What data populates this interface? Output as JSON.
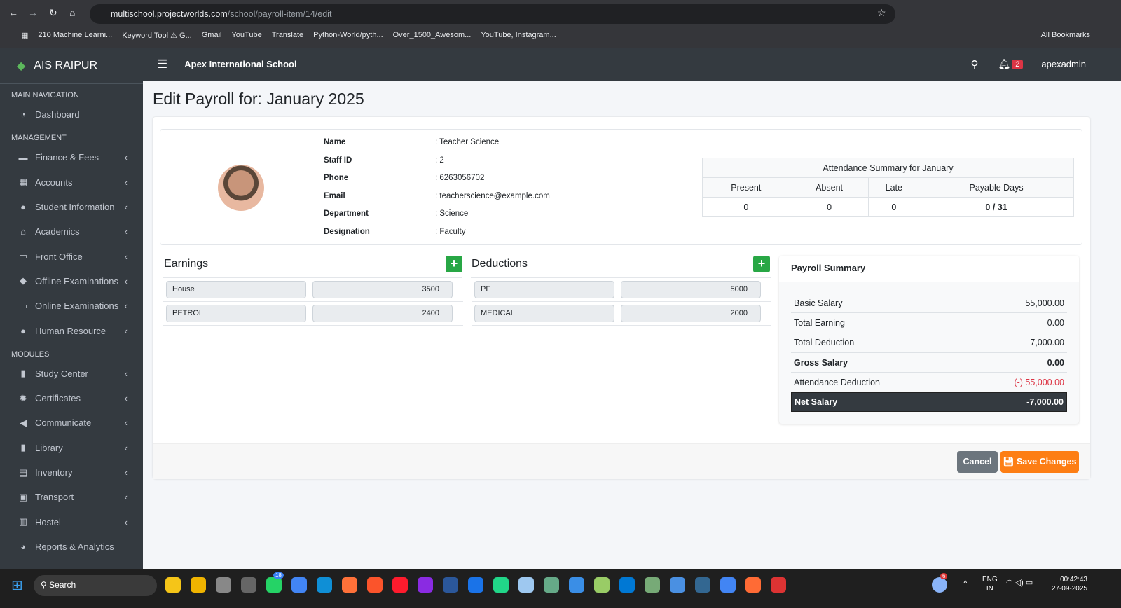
{
  "browser": {
    "url_host": "multischool.projectworlds.com",
    "url_path": "/school/payroll-item/14/edit",
    "bookmarks": [
      "210 Machine Learni...",
      "Keyword Tool ⚠ G...",
      "Gmail",
      "YouTube",
      "Translate",
      "Python-World/pyth...",
      "Over_1500_Awesom...",
      "YouTube, Instagram..."
    ],
    "all_bookmarks": "All Bookmarks"
  },
  "sidebar": {
    "brand": "AIS RAIPUR",
    "sections": [
      {
        "title": "MAIN NAVIGATION",
        "items": [
          {
            "label": "Dashboard",
            "icon": "dashboard-icon",
            "chev": false
          }
        ]
      },
      {
        "title": "MANAGEMENT",
        "items": [
          {
            "label": "Finance & Fees",
            "icon": "money-icon",
            "chev": true
          },
          {
            "label": "Accounts",
            "icon": "calculator-icon",
            "chev": true
          },
          {
            "label": "Student Information",
            "icon": "user-icon",
            "chev": true
          },
          {
            "label": "Academics",
            "icon": "school-icon",
            "chev": true
          },
          {
            "label": "Front Office",
            "icon": "desktop-icon",
            "chev": true
          },
          {
            "label": "Offline Examinations",
            "icon": "graduation-cap-icon",
            "chev": true
          },
          {
            "label": "Online Examinations",
            "icon": "laptop-icon",
            "chev": true
          },
          {
            "label": "Human Resource",
            "icon": "users-icon",
            "chev": true
          }
        ]
      },
      {
        "title": "MODULES",
        "items": [
          {
            "label": "Study Center",
            "icon": "book-reader-icon",
            "chev": true
          },
          {
            "label": "Certificates",
            "icon": "certificate-icon",
            "chev": true
          },
          {
            "label": "Communicate",
            "icon": "bullhorn-icon",
            "chev": true
          },
          {
            "label": "Library",
            "icon": "book-icon",
            "chev": true
          },
          {
            "label": "Inventory",
            "icon": "inventory-icon",
            "chev": true
          },
          {
            "label": "Transport",
            "icon": "bus-icon",
            "chev": true
          },
          {
            "label": "Hostel",
            "icon": "building-icon",
            "chev": true
          },
          {
            "label": "Reports & Analytics",
            "icon": "chart-pie-icon",
            "chev": false
          }
        ]
      }
    ]
  },
  "header": {
    "school": "Apex International School",
    "notifications": "2",
    "user": "apexadmin"
  },
  "page": {
    "title": "Edit Payroll for: January 2025"
  },
  "profile": {
    "fields": [
      {
        "label": "Name",
        "value": ": Teacher Science"
      },
      {
        "label": "Staff ID",
        "value": ": 2"
      },
      {
        "label": "Phone",
        "value": ": 6263056702"
      },
      {
        "label": "Email",
        "value": ": teacherscience@example.com"
      },
      {
        "label": "Department",
        "value": ": Science"
      },
      {
        "label": "Designation",
        "value": ": Faculty"
      }
    ]
  },
  "attendance": {
    "title": "Attendance Summary for January",
    "headers": [
      "Present",
      "Absent",
      "Late",
      "Payable Days"
    ],
    "values": [
      "0",
      "0",
      "0",
      "0 / 31"
    ]
  },
  "earnings": {
    "title": "Earnings",
    "items": [
      {
        "name": "House",
        "amount": "3500"
      },
      {
        "name": "PETROL",
        "amount": "2400"
      }
    ]
  },
  "deductions": {
    "title": "Deductions",
    "items": [
      {
        "name": "PF",
        "amount": "5000"
      },
      {
        "name": "MEDICAL",
        "amount": "2000"
      }
    ]
  },
  "summary": {
    "title": "Payroll Summary",
    "rows": [
      {
        "label": "Basic Salary",
        "value": "55,000.00"
      },
      {
        "label": "Total Earning",
        "value": "0.00"
      },
      {
        "label": "Total Deduction",
        "value": "7,000.00"
      },
      {
        "label": "Gross Salary",
        "value": "0.00"
      },
      {
        "label": "Attendance Deduction",
        "value": "(-) 55,000.00"
      },
      {
        "label": "Net Salary",
        "value": "-7,000.00"
      }
    ]
  },
  "actions": {
    "cancel": "Cancel",
    "save": "Save Changes"
  },
  "taskbar": {
    "search": "Search",
    "lang": "ENG",
    "region": "IN",
    "time": "00:42:43",
    "date": "27-09-2025",
    "whatsapp_badge": "18",
    "weather_badge": "6"
  },
  "colors": {
    "sidebar": "#343a40",
    "success": "#28a745",
    "save": "#fd7e14",
    "cancel": "#6c757d",
    "danger": "#dc3545"
  }
}
